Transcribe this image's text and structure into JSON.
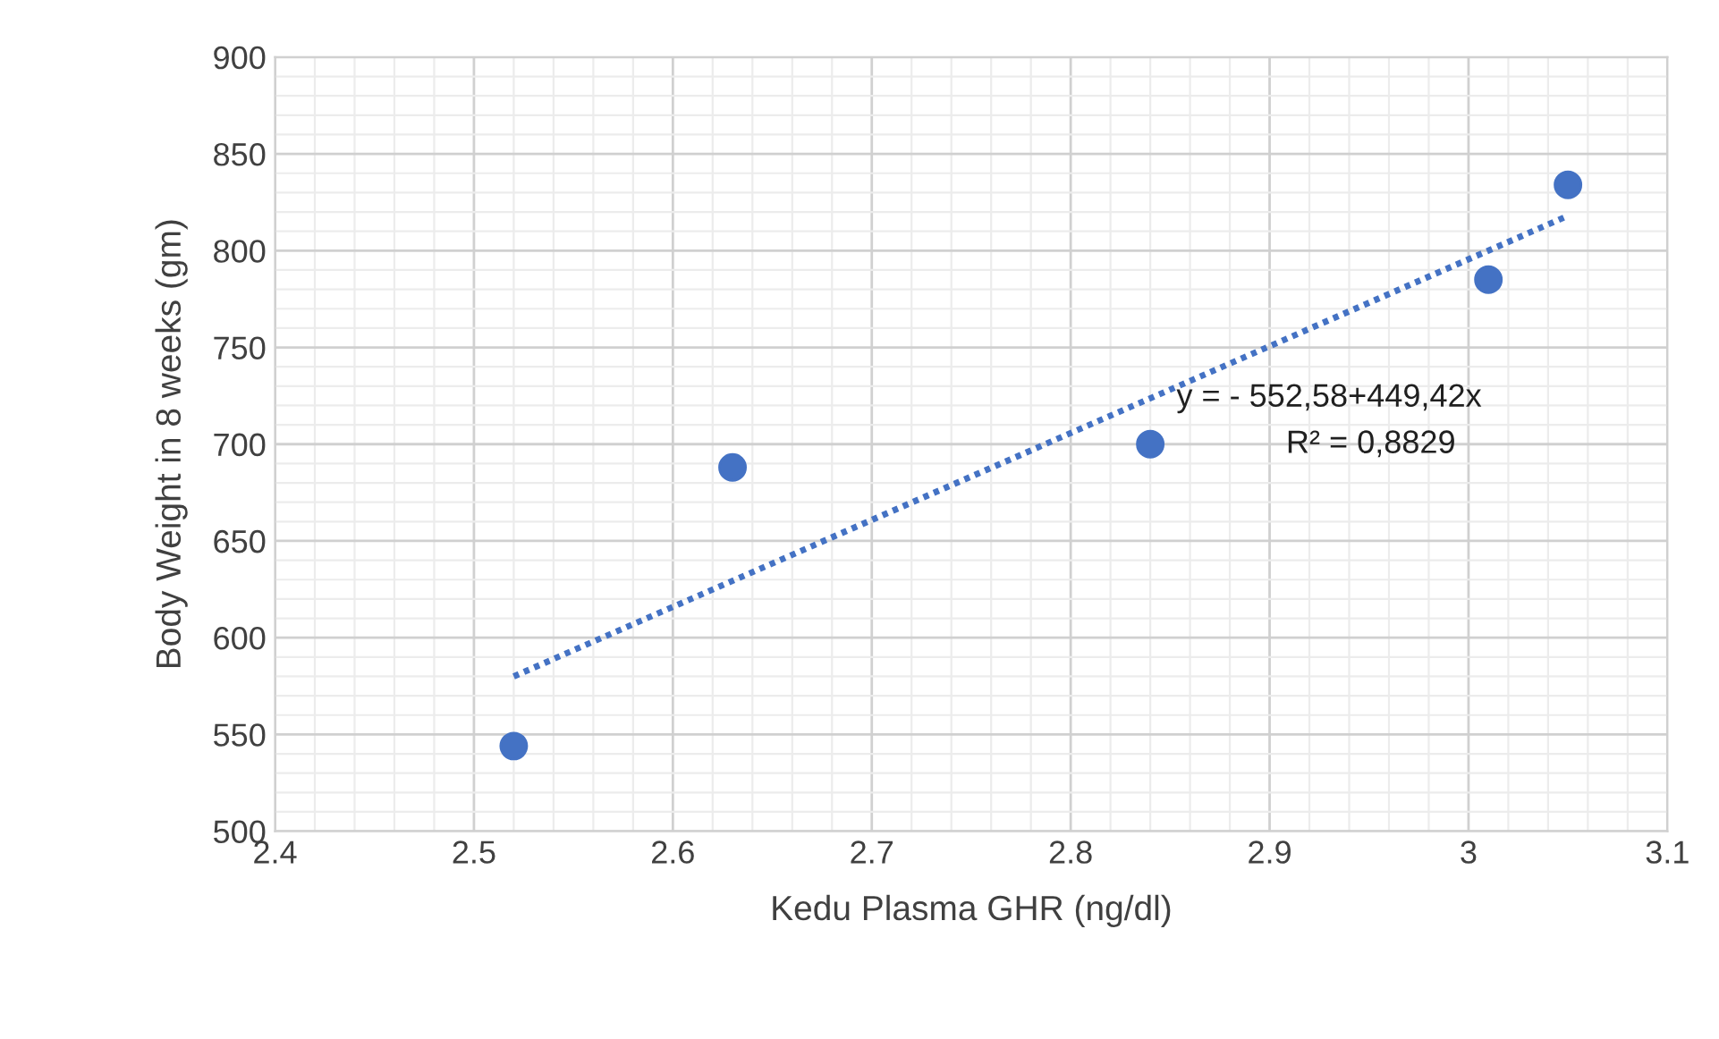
{
  "chart_data": {
    "type": "scatter",
    "xlabel": "Kedu Plasma GHR (ng/dl)",
    "ylabel": "Body Weight in 8 weeks (gm)",
    "xlim": [
      2.4,
      3.1
    ],
    "xticks": [
      2.4,
      2.5,
      2.6,
      2.7,
      2.8,
      2.9,
      3,
      3.1
    ],
    "ylim": [
      500,
      900
    ],
    "yticks": [
      500,
      550,
      600,
      650,
      700,
      750,
      800,
      850,
      900
    ],
    "grid": true,
    "marker": "circle",
    "series": [
      {
        "color": "#4472c4",
        "x": [
          2.52,
          2.63,
          2.84,
          3.01,
          3.05
        ],
        "values": [
          544,
          688,
          700,
          785,
          834
        ]
      },
      {
        "type": "line",
        "color": "#4472c4",
        "line_style": "dotted",
        "marker": "none",
        "x": [
          2.52,
          3.05
        ],
        "values": [
          580,
          818
        ]
      }
    ],
    "annotations": [
      "y = - 552,58+449,42x",
      "R² = 0,8829"
    ]
  }
}
